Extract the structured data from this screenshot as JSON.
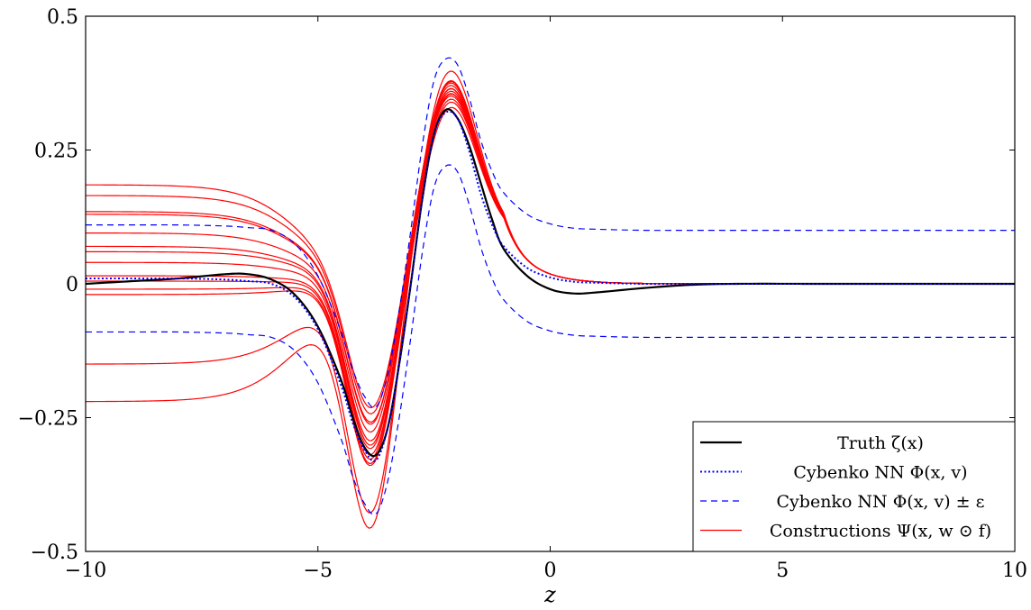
{
  "chart_data": {
    "type": "line",
    "title": "",
    "xlabel": "z",
    "ylabel": "",
    "xlim": [
      -10,
      10
    ],
    "ylim": [
      -0.5,
      0.5
    ],
    "grid": false,
    "legend_position": "bottom-right",
    "x_ticks": [
      -10,
      -5,
      0,
      5,
      10
    ],
    "x_tick_labels": [
      "−10",
      "−5",
      "0",
      "5",
      "10"
    ],
    "y_ticks": [
      -0.5,
      -0.25,
      0,
      0.25,
      0.5
    ],
    "y_tick_labels": [
      "−0.5",
      "−0.25",
      "0",
      "0.25",
      "0.5"
    ],
    "colors": {
      "truth": "#000000",
      "cybenko": "#0000ff",
      "constructions": "#ff0000"
    },
    "x": [
      -10,
      -9,
      -8,
      -7,
      -6.5,
      -6,
      -5.5,
      -5,
      -4.5,
      -4.25,
      -4,
      -3.75,
      -3.5,
      -3.25,
      -3,
      -2.75,
      -2.5,
      -2.25,
      -2,
      -1.75,
      -1.5,
      -1.25,
      -1,
      -0.5,
      0,
      0.5,
      1,
      2,
      3,
      4,
      6,
      8,
      10
    ],
    "series": [
      {
        "name": "Truth ζ(x)",
        "style": "solid-thick",
        "color": "#000000",
        "values": [
          0.0,
          0.005,
          0.01,
          0.018,
          0.018,
          0.008,
          -0.02,
          -0.08,
          -0.18,
          -0.25,
          -0.305,
          -0.32,
          -0.27,
          -0.15,
          0.0,
          0.16,
          0.28,
          0.325,
          0.31,
          0.26,
          0.19,
          0.12,
          0.065,
          0.015,
          -0.01,
          -0.018,
          -0.016,
          -0.008,
          -0.002,
          0.0,
          0.0,
          0.0,
          0.0
        ]
      },
      {
        "name": "Cybenko NN Φ(x,v)",
        "style": "dotted",
        "color": "#0000ff",
        "values": [
          0.01,
          0.01,
          0.01,
          0.008,
          0.005,
          0.0,
          -0.025,
          -0.085,
          -0.19,
          -0.26,
          -0.31,
          -0.33,
          -0.27,
          -0.15,
          0.0,
          0.16,
          0.28,
          0.32,
          0.31,
          0.25,
          0.17,
          0.11,
          0.07,
          0.03,
          0.012,
          0.004,
          0.002,
          0.0,
          0.0,
          0.0,
          0.0,
          0.0,
          0.0
        ]
      },
      {
        "name": "Cybenko NN Φ(x,v) ± ε",
        "style": "dashed",
        "color": "#0000ff",
        "values": [
          0.11,
          0.11,
          0.11,
          0.108,
          0.105,
          0.1,
          0.075,
          0.015,
          -0.09,
          -0.16,
          -0.21,
          -0.23,
          -0.17,
          -0.05,
          0.1,
          0.26,
          0.38,
          0.42,
          0.41,
          0.35,
          0.27,
          0.21,
          0.17,
          0.13,
          0.112,
          0.104,
          0.102,
          0.1,
          0.1,
          0.1,
          0.1,
          0.1,
          0.1
        ]
      },
      {
        "name": "",
        "style": "dashed",
        "color": "#0000ff",
        "values": [
          -0.09,
          -0.09,
          -0.09,
          -0.092,
          -0.095,
          -0.1,
          -0.125,
          -0.185,
          -0.29,
          -0.36,
          -0.41,
          -0.43,
          -0.37,
          -0.25,
          -0.1,
          0.06,
          0.18,
          0.22,
          0.21,
          0.15,
          0.07,
          0.01,
          -0.03,
          -0.07,
          -0.088,
          -0.096,
          -0.098,
          -0.1,
          -0.1,
          -0.1,
          -0.1,
          -0.1,
          -0.1
        ]
      },
      {
        "name": "Constructions Ψ(x, w ⊙ f)",
        "style": "solid-thin",
        "color": "#ff0000",
        "offset": 0.185,
        "depth": -0.21,
        "peak": 0.315
      },
      {
        "name": "",
        "style": "solid-thin",
        "color": "#ff0000",
        "offset": 0.165,
        "depth": -0.225,
        "peak": 0.335
      },
      {
        "name": "",
        "style": "solid-thin",
        "color": "#ff0000",
        "offset": 0.135,
        "depth": -0.245,
        "peak": 0.32
      },
      {
        "name": "",
        "style": "solid-thin",
        "color": "#ff0000",
        "offset": 0.13,
        "depth": -0.25,
        "peak": 0.34
      },
      {
        "name": "",
        "style": "solid-thin",
        "color": "#ff0000",
        "offset": 0.095,
        "depth": -0.27,
        "peak": 0.33
      },
      {
        "name": "",
        "style": "solid-thin",
        "color": "#ff0000",
        "offset": 0.07,
        "depth": -0.29,
        "peak": 0.31
      },
      {
        "name": "",
        "style": "solid-thin",
        "color": "#ff0000",
        "offset": 0.06,
        "depth": -0.3,
        "peak": 0.325
      },
      {
        "name": "",
        "style": "solid-thin",
        "color": "#ff0000",
        "offset": 0.04,
        "depth": -0.31,
        "peak": 0.345
      },
      {
        "name": "",
        "style": "solid-thin",
        "color": "#ff0000",
        "offset": 0.015,
        "depth": -0.325,
        "peak": 0.32
      },
      {
        "name": "",
        "style": "solid-thin",
        "color": "#ff0000",
        "offset": 0.005,
        "depth": -0.335,
        "peak": 0.33
      },
      {
        "name": "",
        "style": "solid-thin",
        "color": "#ff0000",
        "offset": -0.01,
        "depth": -0.345,
        "peak": 0.305
      },
      {
        "name": "",
        "style": "solid-thin",
        "color": "#ff0000",
        "offset": -0.02,
        "depth": -0.35,
        "peak": 0.295
      },
      {
        "name": "",
        "style": "solid-thin",
        "color": "#ff0000",
        "offset": -0.15,
        "depth": -0.46,
        "peak": 0.345
      },
      {
        "name": "",
        "style": "solid-thin",
        "color": "#ff0000",
        "offset": -0.22,
        "depth": -0.5,
        "peak": 0.365
      }
    ],
    "legend": [
      {
        "label": "Truth ζ(x)",
        "style": "solid-thick",
        "color": "#000000"
      },
      {
        "label": "Cybenko NN Φ(x, v)",
        "style": "dotted",
        "color": "#0000ff"
      },
      {
        "label": "Cybenko NN Φ(x, v) ± ε",
        "style": "dashed",
        "color": "#0000ff"
      },
      {
        "label": "Constructions Ψ(x, w ⊙ f)",
        "style": "solid-thin",
        "color": "#ff0000"
      }
    ]
  }
}
